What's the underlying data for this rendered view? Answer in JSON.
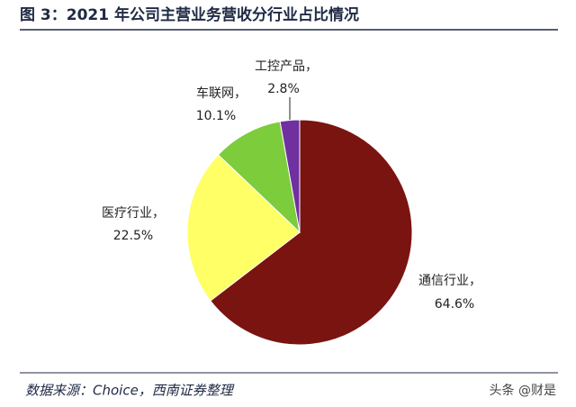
{
  "chart_data": {
    "type": "pie",
    "title": "图 3：2021 年公司主营业务营收分行业占比情况",
    "categories": [
      "通信行业，",
      "医疗行业，",
      "车联网，",
      "工控产品，"
    ],
    "values": [
      64.6,
      22.5,
      10.1,
      2.8
    ],
    "value_labels": [
      "64.6%",
      "22.5%",
      "10.1%",
      "2.8%"
    ],
    "colors": [
      "#7a1410",
      "#ffff66",
      "#7ccc3c",
      "#7030a0"
    ],
    "source": "数据来源：Choice，西南证券整理",
    "watermark": "头条 @财是"
  }
}
